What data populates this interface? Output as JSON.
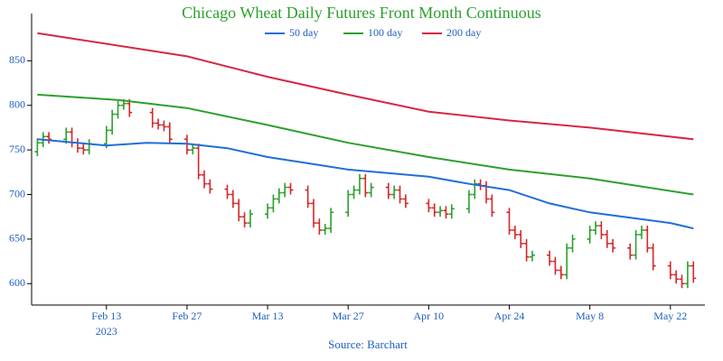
{
  "chart_data": {
    "type": "ohlc",
    "title": "Chicago Wheat Daily Futures Front Month Continuous",
    "source": "Source: Barchart",
    "title_color": "#2ca02c",
    "label_color": "#1f5fbf",
    "up_color": "#2ca02c",
    "down_color": "#d62728",
    "xlim": [
      "2023-01-31",
      "2023-05-28"
    ],
    "xticks": [
      {
        "value": "2023-02-13",
        "label": "Feb 13"
      },
      {
        "value": "2023-02-27",
        "label": "Feb 27"
      },
      {
        "value": "2023-03-13",
        "label": "Mar 13"
      },
      {
        "value": "2023-03-27",
        "label": "Mar 27"
      },
      {
        "value": "2023-04-10",
        "label": "Apr 10"
      },
      {
        "value": "2023-04-24",
        "label": "Apr 24"
      },
      {
        "value": "2023-05-08",
        "label": "May 8"
      },
      {
        "value": "2023-05-22",
        "label": "May 22"
      }
    ],
    "x_year_label": "2023",
    "ylim": [
      576,
      903
    ],
    "yticks": [
      600,
      650,
      700,
      750,
      800,
      850
    ],
    "ohlc": {
      "x": [
        "2023-02-01",
        "2023-02-02",
        "2023-02-03",
        "2023-02-06",
        "2023-02-07",
        "2023-02-08",
        "2023-02-09",
        "2023-02-10",
        "2023-02-13",
        "2023-02-14",
        "2023-02-15",
        "2023-02-16",
        "2023-02-17",
        "2023-02-21",
        "2023-02-22",
        "2023-02-23",
        "2023-02-24",
        "2023-02-27",
        "2023-02-28",
        "2023-03-01",
        "2023-03-02",
        "2023-03-03",
        "2023-03-06",
        "2023-03-07",
        "2023-03-08",
        "2023-03-09",
        "2023-03-10",
        "2023-03-13",
        "2023-03-14",
        "2023-03-15",
        "2023-03-16",
        "2023-03-17",
        "2023-03-20",
        "2023-03-21",
        "2023-03-22",
        "2023-03-23",
        "2023-03-24",
        "2023-03-27",
        "2023-03-28",
        "2023-03-29",
        "2023-03-30",
        "2023-03-31",
        "2023-04-03",
        "2023-04-04",
        "2023-04-05",
        "2023-04-06",
        "2023-04-10",
        "2023-04-11",
        "2023-04-12",
        "2023-04-13",
        "2023-04-14",
        "2023-04-17",
        "2023-04-18",
        "2023-04-19",
        "2023-04-20",
        "2023-04-21",
        "2023-04-24",
        "2023-04-25",
        "2023-04-26",
        "2023-04-27",
        "2023-04-28",
        "2023-05-01",
        "2023-05-02",
        "2023-05-03",
        "2023-05-04",
        "2023-05-05",
        "2023-05-08",
        "2023-05-09",
        "2023-05-10",
        "2023-05-11",
        "2023-05-12",
        "2023-05-15",
        "2023-05-16",
        "2023-05-17",
        "2023-05-18",
        "2023-05-19",
        "2023-05-22",
        "2023-05-23",
        "2023-05-24",
        "2023-05-25",
        "2023-05-26"
      ],
      "open": [
        748,
        758,
        765,
        762,
        770,
        758,
        752,
        750,
        757,
        772,
        790,
        800,
        802,
        792,
        780,
        778,
        776,
        762,
        750,
        752,
        722,
        712,
        706,
        700,
        690,
        675,
        668,
        678,
        685,
        695,
        702,
        708,
        705,
        690,
        668,
        660,
        662,
        680,
        700,
        705,
        718,
        702,
        708,
        700,
        705,
        695,
        690,
        685,
        680,
        682,
        678,
        684,
        700,
        712,
        710,
        695,
        680,
        660,
        655,
        645,
        630,
        632,
        625,
        615,
        610,
        640,
        650,
        660,
        665,
        655,
        645,
        640,
        632,
        655,
        660,
        640,
        620,
        610,
        605,
        600,
        620
      ],
      "high": [
        763,
        770,
        770,
        775,
        775,
        763,
        757,
        762,
        777,
        795,
        805,
        807,
        807,
        797,
        785,
        783,
        781,
        767,
        757,
        757,
        727,
        717,
        711,
        705,
        695,
        680,
        683,
        690,
        700,
        707,
        713,
        713,
        710,
        695,
        673,
        667,
        685,
        705,
        710,
        723,
        723,
        713,
        713,
        710,
        710,
        700,
        695,
        690,
        687,
        687,
        689,
        705,
        717,
        717,
        715,
        700,
        685,
        665,
        660,
        650,
        637,
        637,
        630,
        620,
        645,
        655,
        665,
        670,
        670,
        660,
        650,
        645,
        660,
        665,
        665,
        645,
        625,
        615,
        610,
        625,
        625
      ],
      "low": [
        743,
        753,
        757,
        757,
        753,
        747,
        745,
        745,
        752,
        767,
        785,
        795,
        787,
        775,
        773,
        771,
        757,
        745,
        745,
        717,
        707,
        701,
        695,
        685,
        670,
        663,
        663,
        673,
        680,
        690,
        697,
        700,
        685,
        663,
        655,
        655,
        657,
        675,
        695,
        700,
        697,
        697,
        695,
        695,
        690,
        685,
        680,
        675,
        675,
        673,
        673,
        679,
        695,
        705,
        690,
        675,
        655,
        650,
        640,
        625,
        625,
        620,
        610,
        605,
        605,
        635,
        645,
        655,
        650,
        640,
        635,
        627,
        627,
        650,
        635,
        615,
        605,
        600,
        595,
        595,
        601
      ],
      "close": [
        758,
        765,
        762,
        770,
        758,
        752,
        750,
        757,
        772,
        790,
        800,
        802,
        792,
        780,
        778,
        776,
        762,
        750,
        752,
        722,
        712,
        706,
        700,
        690,
        675,
        668,
        678,
        685,
        695,
        702,
        708,
        705,
        690,
        668,
        660,
        662,
        680,
        700,
        705,
        718,
        702,
        708,
        700,
        705,
        695,
        690,
        685,
        680,
        682,
        678,
        684,
        700,
        712,
        710,
        695,
        680,
        660,
        655,
        645,
        630,
        632,
        625,
        615,
        610,
        640,
        650,
        660,
        665,
        655,
        645,
        640,
        632,
        655,
        660,
        640,
        620,
        610,
        605,
        600,
        620,
        606
      ]
    },
    "series": [
      {
        "name": "50 day",
        "color": "#1f6fd6",
        "x": [
          "2023-02-01",
          "2023-02-13",
          "2023-02-20",
          "2023-02-27",
          "2023-03-06",
          "2023-03-13",
          "2023-03-20",
          "2023-03-27",
          "2023-04-10",
          "2023-04-17",
          "2023-04-24",
          "2023-05-01",
          "2023-05-08",
          "2023-05-22",
          "2023-05-26"
        ],
        "values": [
          762,
          755,
          758,
          757,
          752,
          742,
          735,
          728,
          720,
          712,
          705,
          690,
          680,
          668,
          662
        ]
      },
      {
        "name": "100 day",
        "color": "#2ca02c",
        "x": [
          "2023-02-01",
          "2023-02-15",
          "2023-02-27",
          "2023-03-13",
          "2023-03-27",
          "2023-04-10",
          "2023-04-24",
          "2023-05-08",
          "2023-05-26"
        ],
        "values": [
          812,
          806,
          797,
          778,
          758,
          742,
          728,
          718,
          700
        ]
      },
      {
        "name": "200 day",
        "color": "#d62744",
        "x": [
          "2023-02-01",
          "2023-02-27",
          "2023-03-13",
          "2023-03-27",
          "2023-04-10",
          "2023-04-24",
          "2023-05-08",
          "2023-05-26"
        ],
        "values": [
          881,
          855,
          832,
          812,
          793,
          783,
          775,
          762
        ]
      }
    ]
  }
}
